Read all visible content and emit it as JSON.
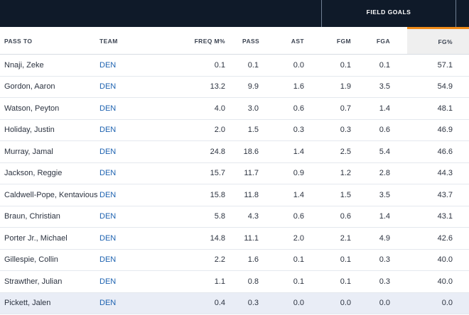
{
  "table": {
    "group_header": "FIELD GOALS",
    "columns": [
      "PASS TO",
      "TEAM",
      "FREQ M%",
      "PASS",
      "AST",
      "FGM",
      "FGA",
      "FG%"
    ],
    "sorted_column": "FG%",
    "sort_accent_color": "#f08c1a",
    "header_bg_color": "#0f1a29",
    "team_link_color": "#1d62b0",
    "rows": [
      [
        "Nnaji, Zeke",
        "DEN",
        "0.1",
        "0.1",
        "0.0",
        "0.1",
        "0.1",
        "57.1"
      ],
      [
        "Gordon, Aaron",
        "DEN",
        "13.2",
        "9.9",
        "1.6",
        "1.9",
        "3.5",
        "54.9"
      ],
      [
        "Watson, Peyton",
        "DEN",
        "4.0",
        "3.0",
        "0.6",
        "0.7",
        "1.4",
        "48.1"
      ],
      [
        "Holiday, Justin",
        "DEN",
        "2.0",
        "1.5",
        "0.3",
        "0.3",
        "0.6",
        "46.9"
      ],
      [
        "Murray, Jamal",
        "DEN",
        "24.8",
        "18.6",
        "1.4",
        "2.5",
        "5.4",
        "46.6"
      ],
      [
        "Jackson, Reggie",
        "DEN",
        "15.7",
        "11.7",
        "0.9",
        "1.2",
        "2.8",
        "44.3"
      ],
      [
        "Caldwell-Pope, Kentavious",
        "DEN",
        "15.8",
        "11.8",
        "1.4",
        "1.5",
        "3.5",
        "43.7"
      ],
      [
        "Braun, Christian",
        "DEN",
        "5.8",
        "4.3",
        "0.6",
        "0.6",
        "1.4",
        "43.1"
      ],
      [
        "Porter Jr., Michael",
        "DEN",
        "14.8",
        "11.1",
        "2.0",
        "2.1",
        "4.9",
        "42.6"
      ],
      [
        "Gillespie, Collin",
        "DEN",
        "2.2",
        "1.6",
        "0.1",
        "0.1",
        "0.3",
        "40.0"
      ],
      [
        "Strawther, Julian",
        "DEN",
        "1.1",
        "0.8",
        "0.1",
        "0.1",
        "0.3",
        "40.0"
      ],
      [
        "Pickett, Jalen",
        "DEN",
        "0.4",
        "0.3",
        "0.0",
        "0.0",
        "0.0",
        "0.0"
      ]
    ]
  }
}
